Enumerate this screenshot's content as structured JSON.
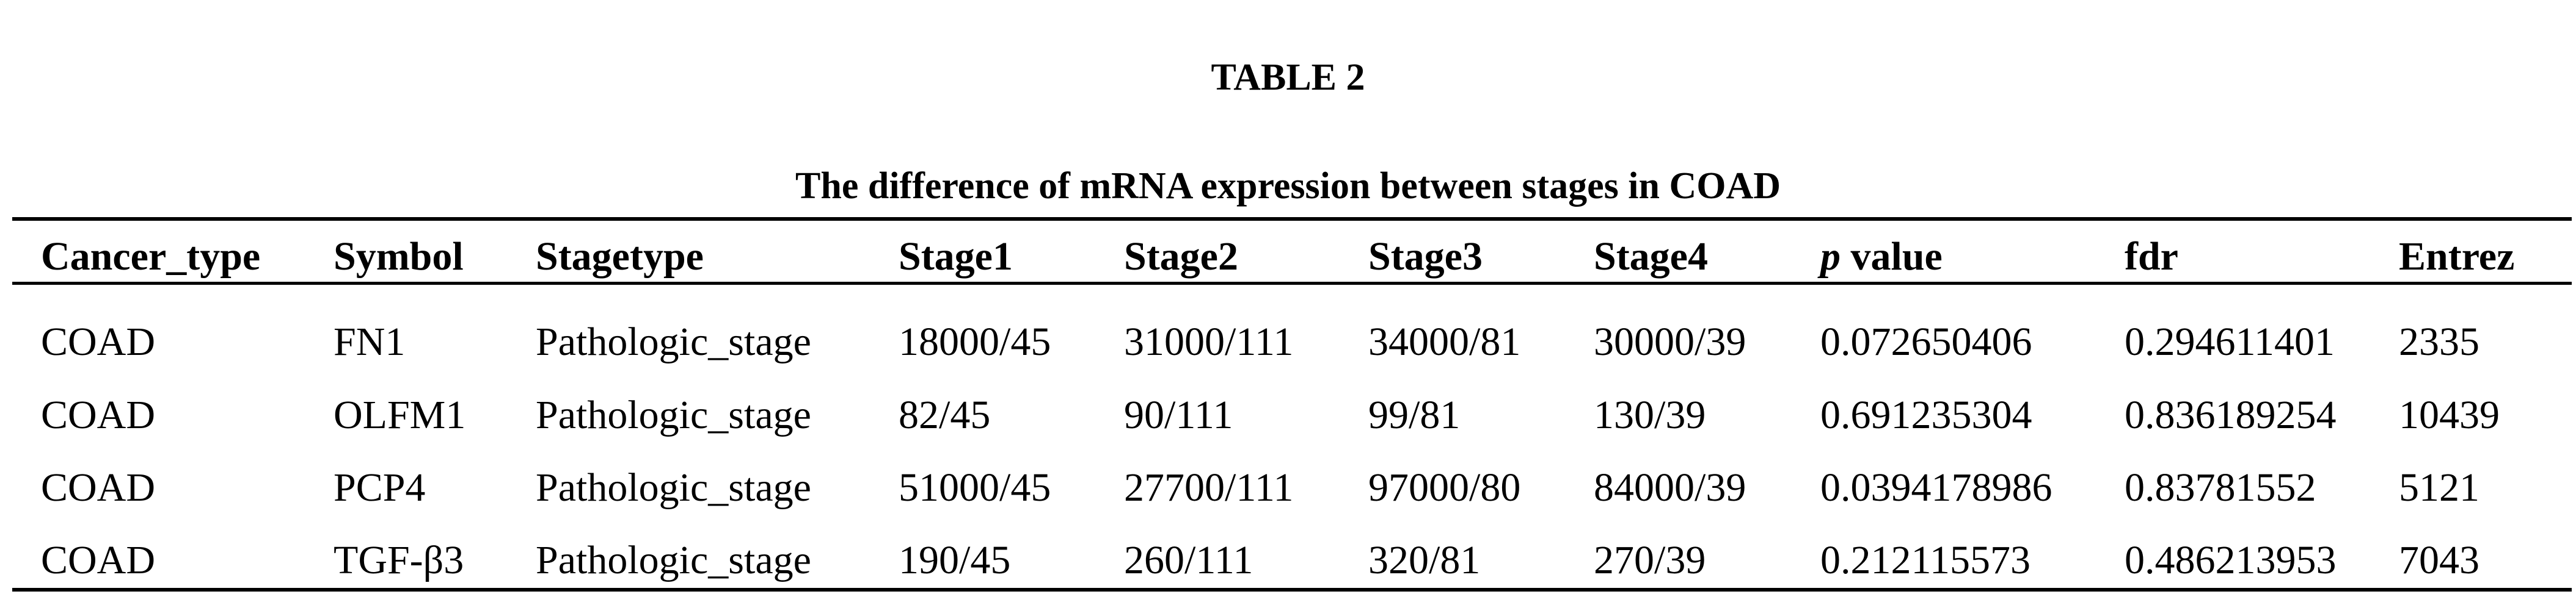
{
  "table_label": "TABLE 2",
  "caption": "The difference of mRNA expression between stages in COAD",
  "columns": [
    {
      "label": "Cancer_type"
    },
    {
      "label": "Symbol"
    },
    {
      "label": "Stagetype"
    },
    {
      "label": "Stage1"
    },
    {
      "label": "Stage2"
    },
    {
      "label": "Stage3"
    },
    {
      "label": "Stage4"
    },
    {
      "label_italic": "p",
      "label": " value"
    },
    {
      "label": "fdr"
    },
    {
      "label": "Entrez"
    }
  ],
  "rows": [
    [
      "COAD",
      "FN1",
      "Pathologic_stage",
      "18000/45",
      "31000/111",
      "34000/81",
      "30000/39",
      "0.072650406",
      "0.294611401",
      "2335"
    ],
    [
      "COAD",
      "OLFM1",
      "Pathologic_stage",
      "82/45",
      "90/111",
      "99/81",
      "130/39",
      "0.691235304",
      "0.836189254",
      "10439"
    ],
    [
      "COAD",
      "PCP4",
      "Pathologic_stage",
      "51000/45",
      "27700/111",
      "97000/80",
      "84000/39",
      "0.0394178986",
      "0.83781552",
      "5121"
    ],
    [
      "COAD",
      "TGF-β3",
      "Pathologic_stage",
      "190/45",
      "260/111",
      "320/81",
      "270/39",
      "0.212115573",
      "0.486213953",
      "7043"
    ]
  ]
}
